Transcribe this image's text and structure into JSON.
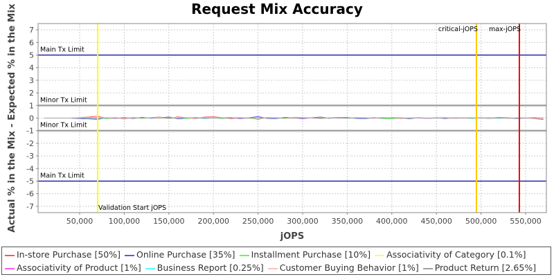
{
  "chart_data": {
    "type": "line",
    "title": "Request Mix Accuracy",
    "xlabel": "jOPS",
    "ylabel": "Actual % in the Mix - Expected % in the Mix",
    "xlim": [
      3400,
      573300
    ],
    "ylim": [
      -7.5,
      7.5
    ],
    "grid": true,
    "legend_position": "bottom",
    "x_ticks": [
      50000,
      100000,
      150000,
      200000,
      250000,
      300000,
      350000,
      400000,
      450000,
      500000,
      550000
    ],
    "x_tick_labels": [
      "50,000",
      "100,000",
      "150,000",
      "200,000",
      "250,000",
      "300,000",
      "350,000",
      "400,000",
      "450,000",
      "500,000",
      "550,000"
    ],
    "y_ticks": [
      7,
      6,
      5,
      4,
      3,
      2,
      1,
      0,
      -1,
      -2,
      -3,
      -4,
      -5,
      -6,
      -7
    ],
    "y_tick_labels": [
      "7",
      "6",
      "5",
      "4",
      "3",
      "2",
      "1",
      "0",
      "-1",
      "-2",
      "-3",
      "-4",
      "-5",
      "-6",
      "-7"
    ],
    "h_markers": [
      {
        "label": "Main Tx Limit",
        "value": 5,
        "color": "#0000a0"
      },
      {
        "label": "Minor Tx Limit",
        "value": 1,
        "color": "#808080"
      },
      {
        "label": "Minor Tx Limit",
        "value": -1,
        "color": "#808080"
      },
      {
        "label": "Main Tx Limit",
        "value": -5,
        "color": "#0000a0"
      }
    ],
    "v_markers": [
      {
        "label": "Validation Start jOPS",
        "value": 70200,
        "color": "#ffff00",
        "label_pos": "bottom-right"
      },
      {
        "label": "critical-jOPS",
        "value": 494900,
        "color": "#ffc800",
        "label_pos": "top-left"
      },
      {
        "label": "max-jOPS",
        "value": 543000,
        "color": "#ff0000",
        "label_pos": "top-left"
      }
    ],
    "x": [
      10000,
      20000,
      30000,
      40000,
      50000,
      60000,
      70000,
      80000,
      90000,
      100000,
      110000,
      120000,
      130000,
      140000,
      150000,
      160000,
      170000,
      180000,
      190000,
      200000,
      210000,
      220000,
      230000,
      240000,
      250000,
      260000,
      270000,
      280000,
      290000,
      300000,
      310000,
      320000,
      330000,
      340000,
      350000,
      360000,
      370000,
      380000,
      390000,
      400000,
      410000,
      420000,
      430000,
      440000,
      450000,
      460000,
      470000,
      480000,
      490000,
      500000,
      510000,
      520000,
      530000,
      540000,
      550000,
      560000,
      570000
    ],
    "series": [
      {
        "name": "In-store Purchase [50%]",
        "color": "#ff5555",
        "values": [
          0,
          0,
          0,
          0,
          0.05,
          0.08,
          0.15,
          -0.03,
          0.05,
          -0.08,
          0.06,
          -0.02,
          0.04,
          0.08,
          -0.05,
          0.1,
          0.02,
          -0.04,
          0.08,
          0.1,
          0.03,
          -0.06,
          0.04,
          0.02,
          -0.1,
          0.05,
          0.03,
          -0.02,
          0.06,
          0.04,
          0.01,
          -0.05,
          0.03,
          0.06,
          -0.02,
          0.04,
          0.02,
          -0.03,
          0.05,
          0.01,
          -0.04,
          0.03,
          0.02,
          -0.02,
          0.04,
          0.01,
          -0.03,
          0.02,
          0.03,
          -0.01,
          0.02,
          0.04,
          -0.02,
          0.01,
          0.03,
          -0.05,
          -0.12
        ]
      },
      {
        "name": "Online Purchase [35%]",
        "color": "#5555ff",
        "values": [
          0,
          0,
          0,
          0,
          -0.05,
          -0.06,
          -0.1,
          0.02,
          -0.03,
          0.05,
          -0.04,
          0.06,
          -0.02,
          0.03,
          0.08,
          -0.06,
          -0.03,
          0.05,
          -0.04,
          0.02,
          0.01,
          0.04,
          -0.05,
          0.02,
          0.12,
          -0.03,
          -0.04,
          0.05,
          0.02,
          -0.06,
          0.03,
          0.08,
          -0.02,
          0.05,
          0.04,
          -0.03,
          -0.05,
          0.02,
          -0.04,
          0.03,
          0.02,
          -0.06,
          0.04,
          -0.03,
          0.02,
          -0.04,
          0.03,
          0.01,
          -0.02,
          0.02,
          -0.03,
          0.05,
          0.02,
          -0.04,
          0.01,
          0.03,
          -0.02
        ]
      },
      {
        "name": "Installment Purchase [10%]",
        "color": "#55ff55",
        "values": [
          0,
          0,
          0,
          0,
          0.02,
          -0.04,
          0.05,
          -0.06,
          0.03,
          -0.02,
          0.04,
          -0.03,
          0.02,
          0.05,
          -0.04,
          0.03,
          -0.05,
          0.06,
          -0.02,
          0.03,
          -0.04,
          0.02,
          0.05,
          -0.03,
          -0.06,
          0.04,
          0.02,
          -0.03,
          0.05,
          -0.02,
          0.03,
          -0.04,
          0.02,
          0.04,
          -0.03,
          0.02,
          -0.02,
          0.05,
          -0.04,
          -0.06,
          0.03,
          -0.02,
          0.04,
          -0.03,
          0.02,
          0.05,
          -0.02,
          0.03,
          -0.04,
          0.02,
          0.04,
          -0.03,
          0.02,
          -0.02,
          0.03,
          -0.01,
          0.02
        ]
      },
      {
        "name": "Associativity of Category [0.1%]",
        "color": "#ffff55",
        "values": [
          0,
          0,
          0,
          0,
          0.01,
          0,
          -0.01,
          0,
          0.01,
          0,
          0,
          0.01,
          0,
          -0.01,
          0,
          0.01,
          0,
          0,
          -0.01,
          0,
          0.01,
          0,
          0,
          -0.01,
          0,
          0.01,
          0,
          0,
          0,
          -0.01,
          0,
          0.01,
          0,
          0,
          -0.01,
          0,
          0,
          0.01,
          0,
          0,
          -0.01,
          0,
          0.01,
          0,
          0,
          0,
          -0.01,
          0,
          0.01,
          0,
          0,
          0,
          -0.01,
          0,
          0.01,
          0,
          0
        ]
      },
      {
        "name": "Associativity of Product [1%]",
        "color": "#ff55ff",
        "values": [
          0,
          0,
          0,
          0,
          0.02,
          -0.01,
          0.03,
          0,
          -0.02,
          0.01,
          0,
          0.02,
          -0.01,
          0,
          0.02,
          -0.02,
          0.01,
          0,
          0.02,
          -0.01,
          0,
          0.01,
          -0.02,
          0.01,
          0,
          0.02,
          -0.01,
          0,
          0.01,
          -0.02,
          0.01,
          0,
          0.02,
          -0.01,
          0,
          0.01,
          -0.01,
          0,
          0.02,
          0,
          -0.01,
          0.01,
          0,
          -0.02,
          0.01,
          0,
          0.01,
          -0.01,
          0,
          0.02,
          -0.01,
          0,
          0.01,
          0,
          -0.01,
          0.01,
          0
        ]
      },
      {
        "name": "Business Report [0.25%]",
        "color": "#55ffff",
        "values": [
          0,
          0,
          0,
          0,
          -0.01,
          0.02,
          -0.03,
          0.01,
          0,
          -0.02,
          0.01,
          0,
          -0.01,
          0.02,
          0,
          -0.01,
          0.01,
          0,
          -0.02,
          0.01,
          0,
          -0.01,
          0.02,
          0,
          -0.01,
          0,
          0.01,
          -0.01,
          0,
          0.02,
          -0.01,
          0,
          0.01,
          0,
          -0.02,
          0.01,
          0,
          -0.01,
          0.01,
          0,
          0.02,
          -0.01,
          0,
          0.01,
          -0.01,
          0,
          0.02,
          0,
          -0.01,
          0,
          0.01,
          -0.02,
          0,
          0.01,
          0,
          -0.01,
          0
        ]
      },
      {
        "name": "Customer Buying Behavior [1%]",
        "color": "#ffc0c0",
        "values": [
          0,
          0,
          0,
          0,
          0.03,
          0.04,
          0.06,
          -0.02,
          0.02,
          -0.05,
          0.03,
          -0.01,
          0.02,
          0.04,
          -0.03,
          0.05,
          0.01,
          -0.02,
          0.03,
          0.05,
          0.01,
          -0.03,
          0.02,
          0.01,
          -0.05,
          0.02,
          0.01,
          -0.01,
          0.03,
          0.02,
          0,
          -0.03,
          0.02,
          0.03,
          -0.01,
          0.02,
          0.01,
          -0.02,
          0.03,
          0,
          -0.02,
          0.02,
          0.01,
          -0.01,
          0.02,
          0,
          -0.02,
          0.01,
          0.02,
          0,
          0.01,
          0.02,
          -0.01,
          0,
          0.02,
          -0.03,
          -0.05
        ]
      },
      {
        "name": "Product Return [2.65%]",
        "color": "#a0a0a0",
        "values": [
          0,
          0,
          0,
          0,
          -0.02,
          0.02,
          -0.03,
          0.01,
          -0.01,
          0.02,
          -0.02,
          0.01,
          0.02,
          -0.01,
          0.01,
          -0.02,
          0.02,
          0,
          -0.01,
          0.02,
          -0.01,
          0.01,
          0,
          -0.02,
          0.03,
          -0.01,
          0.01,
          0,
          -0.02,
          0.01,
          0.02,
          -0.01,
          0,
          0.01,
          -0.02,
          0.01,
          0,
          0.02,
          -0.01,
          0,
          0.01,
          -0.02,
          0.01,
          0,
          -0.01,
          0.02,
          0,
          -0.01,
          0.01,
          0,
          -0.02,
          0.01,
          0,
          0.01,
          -0.01,
          0,
          0.01
        ]
      }
    ]
  }
}
